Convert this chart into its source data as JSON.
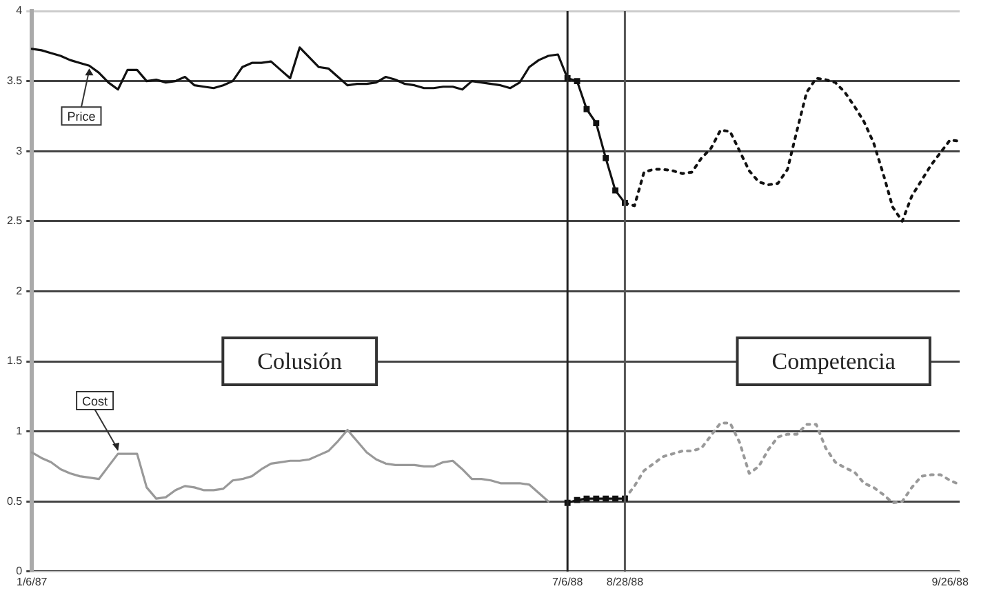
{
  "chart_data": {
    "type": "line",
    "categories": [
      "1/6/87",
      null,
      null,
      null,
      null,
      null,
      null,
      null,
      null,
      null,
      null,
      null,
      null,
      null,
      null,
      null,
      null,
      null,
      null,
      null,
      null,
      null,
      null,
      null,
      null,
      null,
      null,
      null,
      null,
      null,
      null,
      null,
      null,
      null,
      null,
      null,
      null,
      null,
      null,
      null,
      null,
      null,
      null,
      null,
      null,
      null,
      null,
      null,
      null,
      null,
      null,
      null,
      null,
      null,
      null,
      null,
      "7/6/88",
      null,
      null,
      null,
      null,
      null,
      "8/28/88",
      null,
      null,
      null,
      null,
      null,
      null,
      null,
      null,
      null,
      null,
      null,
      null,
      null,
      null,
      null,
      null,
      null,
      null,
      null,
      null,
      null,
      null,
      null,
      null,
      null,
      null,
      null,
      null,
      null,
      null,
      null,
      null,
      null,
      "9/26/88",
      null
    ],
    "series": [
      {
        "name": "Price",
        "color": "#111111",
        "line_style": "solid",
        "marker": "none",
        "values": [
          3.73,
          3.72,
          3.7,
          3.68,
          3.65,
          3.63,
          3.61,
          3.56,
          3.49,
          3.44,
          3.58,
          3.58,
          3.5,
          3.51,
          3.49,
          3.5,
          3.53,
          3.47,
          3.46,
          3.45,
          3.47,
          3.5,
          3.6,
          3.63,
          3.63,
          3.64,
          3.58,
          3.52,
          3.74,
          3.67,
          3.6,
          3.59,
          3.53,
          3.47,
          3.48,
          3.48,
          3.49,
          3.53,
          3.51,
          3.48,
          3.47,
          3.45,
          3.45,
          3.46,
          3.46,
          3.44,
          3.5,
          3.49,
          3.48,
          3.47,
          3.45,
          3.49,
          3.6,
          3.65,
          3.68,
          3.69,
          3.52,
          null,
          null,
          null,
          null,
          null,
          null,
          null,
          null,
          null,
          null,
          null,
          null,
          null,
          null,
          null,
          null,
          null,
          null,
          null,
          null,
          null,
          null,
          null,
          null,
          null,
          null,
          null,
          null,
          null,
          null,
          null,
          null,
          null,
          null,
          null,
          null,
          null,
          null,
          null,
          null,
          null
        ]
      },
      {
        "color": "#111111",
        "line_style": "solid",
        "marker": "square",
        "values": [
          null,
          null,
          null,
          null,
          null,
          null,
          null,
          null,
          null,
          null,
          null,
          null,
          null,
          null,
          null,
          null,
          null,
          null,
          null,
          null,
          null,
          null,
          null,
          null,
          null,
          null,
          null,
          null,
          null,
          null,
          null,
          null,
          null,
          null,
          null,
          null,
          null,
          null,
          null,
          null,
          null,
          null,
          null,
          null,
          null,
          null,
          null,
          null,
          null,
          null,
          null,
          null,
          null,
          null,
          null,
          null,
          3.52,
          3.5,
          3.3,
          3.2,
          2.95,
          2.72,
          2.63,
          null,
          null,
          null,
          null,
          null,
          null,
          null,
          null,
          null,
          null,
          null,
          null,
          null,
          null,
          null,
          null,
          null,
          null,
          null,
          null,
          null,
          null,
          null,
          null,
          null,
          null,
          null,
          null,
          null,
          null,
          null,
          null,
          null,
          null,
          null
        ]
      },
      {
        "color": "#111111",
        "line_style": "dotted",
        "marker": "none",
        "values": [
          null,
          null,
          null,
          null,
          null,
          null,
          null,
          null,
          null,
          null,
          null,
          null,
          null,
          null,
          null,
          null,
          null,
          null,
          null,
          null,
          null,
          null,
          null,
          null,
          null,
          null,
          null,
          null,
          null,
          null,
          null,
          null,
          null,
          null,
          null,
          null,
          null,
          null,
          null,
          null,
          null,
          null,
          null,
          null,
          null,
          null,
          null,
          null,
          null,
          null,
          null,
          null,
          null,
          null,
          null,
          null,
          null,
          null,
          null,
          null,
          null,
          null,
          2.63,
          2.61,
          2.85,
          2.87,
          2.87,
          2.86,
          2.84,
          2.85,
          2.95,
          3.02,
          3.15,
          3.14,
          3.0,
          2.86,
          2.78,
          2.76,
          2.77,
          2.87,
          3.15,
          3.42,
          3.52,
          3.51,
          3.49,
          3.42,
          3.32,
          3.21,
          3.06,
          2.84,
          2.6,
          2.5,
          2.68,
          2.79,
          2.9,
          2.99,
          3.08,
          3.07
        ]
      },
      {
        "name": "Cost",
        "color": "#999999",
        "line_style": "solid",
        "marker": "none",
        "values": [
          0.85,
          0.81,
          0.78,
          0.73,
          0.7,
          0.68,
          0.67,
          0.66,
          0.75,
          0.84,
          0.84,
          0.84,
          0.6,
          0.52,
          0.53,
          0.58,
          0.61,
          0.6,
          0.58,
          0.58,
          0.59,
          0.65,
          0.66,
          0.68,
          0.73,
          0.77,
          0.78,
          0.79,
          0.79,
          0.8,
          0.83,
          0.86,
          0.93,
          1.01,
          0.93,
          0.85,
          0.8,
          0.77,
          0.76,
          0.76,
          0.76,
          0.75,
          0.75,
          0.78,
          0.79,
          0.73,
          0.66,
          0.66,
          0.65,
          0.63,
          0.63,
          0.63,
          0.62,
          0.56,
          0.5,
          null,
          null,
          null,
          null,
          null,
          null,
          null,
          null,
          null,
          null,
          null,
          null,
          null,
          null,
          null,
          null,
          null,
          null,
          null,
          null,
          null,
          null,
          null,
          null,
          null,
          null,
          null,
          null,
          null,
          null,
          null,
          null,
          null,
          null,
          null,
          null,
          null,
          null,
          null,
          null,
          null,
          null,
          null
        ]
      },
      {
        "color": "#111111",
        "line_style": "solid",
        "marker": "square",
        "values": [
          null,
          null,
          null,
          null,
          null,
          null,
          null,
          null,
          null,
          null,
          null,
          null,
          null,
          null,
          null,
          null,
          null,
          null,
          null,
          null,
          null,
          null,
          null,
          null,
          null,
          null,
          null,
          null,
          null,
          null,
          null,
          null,
          null,
          null,
          null,
          null,
          null,
          null,
          null,
          null,
          null,
          null,
          null,
          null,
          null,
          null,
          null,
          null,
          null,
          null,
          null,
          null,
          null,
          null,
          null,
          null,
          0.49,
          0.51,
          0.52,
          0.52,
          0.52,
          0.52,
          0.52,
          null,
          null,
          null,
          null,
          null,
          null,
          null,
          null,
          null,
          null,
          null,
          null,
          null,
          null,
          null,
          null,
          null,
          null,
          null,
          null,
          null,
          null,
          null,
          null,
          null,
          null,
          null,
          null,
          null,
          null,
          null,
          null,
          null,
          null,
          null
        ]
      },
      {
        "color": "#999999",
        "line_style": "dotted",
        "marker": "none",
        "values": [
          null,
          null,
          null,
          null,
          null,
          null,
          null,
          null,
          null,
          null,
          null,
          null,
          null,
          null,
          null,
          null,
          null,
          null,
          null,
          null,
          null,
          null,
          null,
          null,
          null,
          null,
          null,
          null,
          null,
          null,
          null,
          null,
          null,
          null,
          null,
          null,
          null,
          null,
          null,
          null,
          null,
          null,
          null,
          null,
          null,
          null,
          null,
          null,
          null,
          null,
          null,
          null,
          null,
          null,
          null,
          null,
          null,
          null,
          null,
          null,
          null,
          null,
          0.52,
          0.61,
          0.72,
          0.77,
          0.82,
          0.84,
          0.86,
          0.86,
          0.88,
          0.97,
          1.06,
          1.06,
          0.92,
          0.7,
          0.75,
          0.87,
          0.96,
          0.98,
          0.98,
          1.05,
          1.05,
          0.88,
          0.78,
          0.74,
          0.71,
          0.63,
          0.6,
          0.55,
          0.49,
          0.5,
          0.6,
          0.68,
          0.69,
          0.69,
          0.65,
          0.62
        ]
      }
    ],
    "ylim": [
      0,
      4
    ],
    "yticks": [
      0,
      0.5,
      1,
      1.5,
      2,
      2.5,
      3,
      3.5,
      4
    ],
    "grid": "y",
    "legend": false,
    "ref_lines": [
      {
        "axis": "x",
        "value": "7/6/88",
        "color": "#222222"
      },
      {
        "axis": "x",
        "value": "8/28/88",
        "color": "#555555"
      }
    ],
    "annotations": [
      "Colusión",
      "Competencia"
    ]
  }
}
